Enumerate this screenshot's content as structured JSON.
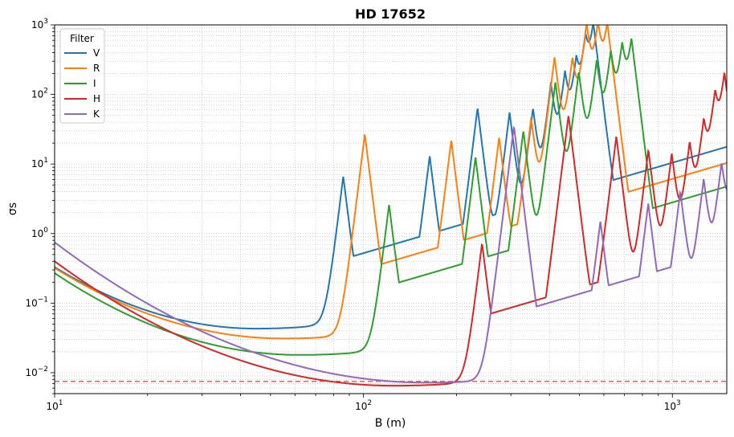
{
  "chart_data": {
    "type": "line",
    "title": "HD 17652",
    "xlabel": "B (m)",
    "ylabel": "σs",
    "xscale": "log",
    "yscale": "log",
    "xlim": [
      10,
      1500
    ],
    "ylim": [
      0.005,
      1000
    ],
    "x_tick_labels": [
      {
        "value": 10,
        "base": "10",
        "exp": "1"
      },
      {
        "value": 100,
        "base": "10",
        "exp": "2"
      },
      {
        "value": 1000,
        "base": "10",
        "exp": "3"
      }
    ],
    "y_tick_labels": [
      {
        "value": 0.01,
        "base": "10",
        "exp": "−2"
      },
      {
        "value": 0.1,
        "base": "10",
        "exp": "−1"
      },
      {
        "value": 1,
        "base": "10",
        "exp": "0"
      },
      {
        "value": 10,
        "base": "10",
        "exp": "1"
      },
      {
        "value": 100,
        "base": "10",
        "exp": "2"
      },
      {
        "value": 1000,
        "base": "10",
        "exp": "3"
      }
    ],
    "grid": true,
    "legend": {
      "title": "Filter",
      "placement": "top-left"
    },
    "reference_line": {
      "y": 0.0075,
      "color": "#e06666",
      "style": "dashed"
    },
    "series": [
      {
        "name": "V",
        "color": "#1f77b4",
        "min_x": 45,
        "min_y": 0.043,
        "base_x": 10,
        "base_y": 0.33,
        "first_res": 86,
        "peaks": [
          6.6,
          13,
          64,
          55,
          62,
          140,
          200,
          300,
          600,
          1000
        ]
      },
      {
        "name": "R",
        "color": "#ff7f0e",
        "min_x": 55,
        "min_y": 0.031,
        "base_x": 10,
        "base_y": 0.32,
        "first_res": 101,
        "peaks": [
          27,
          22,
          24,
          45,
          340,
          320,
          1000,
          1000,
          1000
        ]
      },
      {
        "name": "I",
        "color": "#2ca02c",
        "min_x": 62,
        "min_y": 0.018,
        "base_x": 10,
        "base_y": 0.27,
        "first_res": 121,
        "peaks": [
          2.6,
          12.5,
          30,
          150,
          210,
          300,
          400,
          500,
          600
        ]
      },
      {
        "name": "H",
        "color": "#d62728",
        "min_x": 125,
        "min_y": 0.0065,
        "base_x": 10,
        "base_y": 0.4,
        "first_res": 242,
        "peaks": [
          0.72,
          50,
          25,
          16,
          14,
          20,
          40,
          100,
          200
        ]
      },
      {
        "name": "K",
        "color": "#9467bd",
        "min_x": 160,
        "min_y": 0.0072,
        "base_x": 10,
        "base_y": 0.75,
        "first_res": 307,
        "peaks": [
          35,
          1.5,
          2.7,
          4,
          6,
          10,
          20
        ]
      }
    ]
  }
}
